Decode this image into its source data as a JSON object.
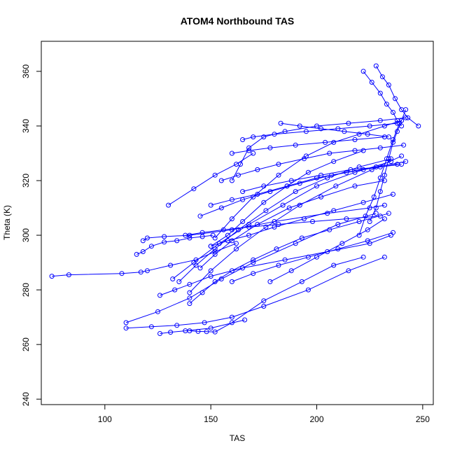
{
  "chart_data": {
    "type": "line",
    "title": "ATOM4 Northbound TAS",
    "xlabel": "TAS",
    "ylabel": "Theta (K)",
    "xlim": [
      70,
      255
    ],
    "ylim": [
      238,
      371
    ],
    "x_ticks": [
      "100",
      "150",
      "200",
      "250"
    ],
    "y_ticks": [
      "240",
      "260",
      "280",
      "300",
      "320",
      "340",
      "360"
    ],
    "grid": false,
    "marker": "open-circle",
    "series_color": "#0000ff",
    "series": [
      {
        "x": [
          75,
          83,
          108,
          117,
          120,
          131,
          143,
          152,
          162
        ],
        "y": [
          285,
          285.5,
          286,
          286.5,
          287,
          289,
          291,
          294,
          297
        ]
      },
      {
        "x": [
          115,
          118,
          122,
          128,
          134,
          140,
          146,
          151
        ],
        "y": [
          293,
          294,
          296,
          297.5,
          298,
          299,
          299.5,
          300
        ]
      },
      {
        "x": [
          118,
          120,
          128,
          140,
          160,
          180,
          205,
          225,
          232
        ],
        "y": [
          298,
          299,
          299.5,
          300,
          302,
          305,
          308,
          310,
          311
        ]
      },
      {
        "x": [
          130,
          142,
          152,
          162,
          170
        ],
        "y": [
          311,
          317,
          322,
          326,
          330
        ]
      },
      {
        "x": [
          110,
          125,
          140,
          155,
          170,
          190,
          210,
          228
        ],
        "y": [
          268,
          272,
          277,
          284,
          290,
          297,
          304,
          308
        ]
      },
      {
        "x": [
          110,
          122,
          134,
          147,
          160,
          175,
          196,
          215,
          232
        ],
        "y": [
          266,
          266.5,
          267,
          268,
          270,
          274,
          280,
          287,
          292
        ]
      },
      {
        "x": [
          126,
          131,
          138,
          150,
          166
        ],
        "y": [
          264,
          264.5,
          265,
          266,
          269
        ]
      },
      {
        "x": [
          140,
          144,
          148,
          152,
          160,
          175,
          193,
          208,
          222
        ],
        "y": [
          265,
          264.8,
          264.7,
          264.6,
          268,
          276,
          283,
          289,
          292
        ]
      },
      {
        "x": [
          126,
          133,
          140,
          150,
          165,
          185,
          205,
          225,
          235
        ],
        "y": [
          278,
          280,
          282,
          285,
          288,
          291,
          294,
          297,
          300
        ]
      },
      {
        "x": [
          150,
          158,
          165,
          175,
          186,
          196,
          208,
          222
        ],
        "y": [
          296,
          300,
          305,
          312,
          318,
          323,
          327,
          331
        ]
      },
      {
        "x": [
          152,
          160,
          170,
          182,
          195,
          208,
          220,
          232,
          240
        ],
        "y": [
          299,
          306,
          314,
          322,
          329,
          334,
          337,
          340,
          342
        ]
      },
      {
        "x": [
          160,
          164,
          168,
          175,
          185,
          200,
          215,
          230,
          242
        ],
        "y": [
          320,
          326,
          332,
          336,
          338,
          340,
          341,
          342,
          343
        ]
      },
      {
        "x": [
          165,
          170,
          180,
          195,
          210,
          225,
          238
        ],
        "y": [
          335,
          336,
          337,
          338,
          339,
          340,
          341
        ]
      },
      {
        "x": [
          145,
          152,
          160,
          172,
          187,
          202,
          218,
          232
        ],
        "y": [
          288,
          293,
          298,
          304,
          310,
          314,
          318,
          320
        ]
      },
      {
        "x": [
          135,
          143,
          152,
          163,
          176,
          190,
          205,
          220,
          235
        ],
        "y": [
          283,
          289,
          295,
          302,
          309,
          316,
          321,
          325,
          328
        ]
      },
      {
        "x": [
          140,
          150,
          162,
          176,
          192,
          209,
          226,
          240
        ],
        "y": [
          279,
          287,
          295,
          303,
          311,
          318,
          324,
          329
        ]
      },
      {
        "x": [
          132,
          142,
          154,
          168,
          184,
          200,
          218,
          235
        ],
        "y": [
          284,
          290,
          297,
          304,
          311,
          318,
          323,
          327
        ]
      },
      {
        "x": [
          145,
          155,
          165,
          178,
          192,
          207,
          222,
          238
        ],
        "y": [
          307,
          310,
          313,
          316,
          319,
          322,
          324,
          326
        ]
      },
      {
        "x": [
          150,
          160,
          172,
          186,
          200,
          214,
          228,
          242
        ],
        "y": [
          311,
          313,
          315,
          318,
          321,
          323,
          325,
          327
        ]
      },
      {
        "x": [
          155,
          163,
          172,
          182,
          194,
          206,
          218,
          230,
          241
        ],
        "y": [
          320,
          322,
          324,
          326,
          328,
          330,
          331,
          332,
          333
        ]
      },
      {
        "x": [
          222,
          226,
          230,
          233,
          236,
          238,
          240
        ],
        "y": [
          360,
          356,
          352,
          348,
          345,
          342,
          340
        ]
      },
      {
        "x": [
          228,
          231,
          234,
          237,
          240,
          243,
          248
        ],
        "y": [
          362,
          358,
          355,
          350,
          346,
          343,
          340
        ]
      },
      {
        "x": [
          225,
          228,
          230,
          232,
          234,
          236,
          238,
          240,
          242
        ],
        "y": [
          305,
          310,
          316,
          322,
          328,
          334,
          338,
          342,
          346
        ]
      },
      {
        "x": [
          220,
          223,
          227,
          230,
          233,
          236,
          239
        ],
        "y": [
          300,
          307,
          314,
          321,
          328,
          335,
          341
        ]
      },
      {
        "x": [
          160,
          170,
          182,
          196,
          210,
          224,
          236
        ],
        "y": [
          283,
          286,
          289,
          292,
          295,
          298,
          301
        ]
      },
      {
        "x": [
          178,
          188,
          200,
          212,
          224,
          232
        ],
        "y": [
          283,
          287,
          292,
          297,
          302,
          306
        ]
      },
      {
        "x": [
          140,
          146,
          152,
          160,
          170,
          181,
          193,
          206,
          220,
          234
        ],
        "y": [
          275,
          279,
          283,
          287,
          291,
          295,
          299,
          302,
          305,
          308
        ]
      },
      {
        "x": [
          138,
          146,
          156,
          168,
          182,
          198,
          214,
          230
        ],
        "y": [
          300,
          301,
          302,
          303,
          304,
          305,
          306,
          307
        ]
      },
      {
        "x": [
          160,
          168,
          178,
          190,
          204,
          218,
          232
        ],
        "y": [
          330,
          331,
          332,
          333,
          334,
          335,
          336
        ]
      },
      {
        "x": [
          183,
          192,
          202,
          213,
          224,
          234
        ],
        "y": [
          341,
          340,
          339,
          338,
          337,
          336
        ]
      },
      {
        "x": [
          165,
          175,
          188,
          202,
          216,
          230,
          240
        ],
        "y": [
          316,
          318,
          320,
          322,
          324,
          325,
          326
        ]
      },
      {
        "x": [
          150,
          158,
          168,
          180,
          194,
          208,
          222,
          236
        ],
        "y": [
          296,
          298,
          300,
          303,
          306,
          309,
          312,
          315
        ]
      }
    ]
  }
}
